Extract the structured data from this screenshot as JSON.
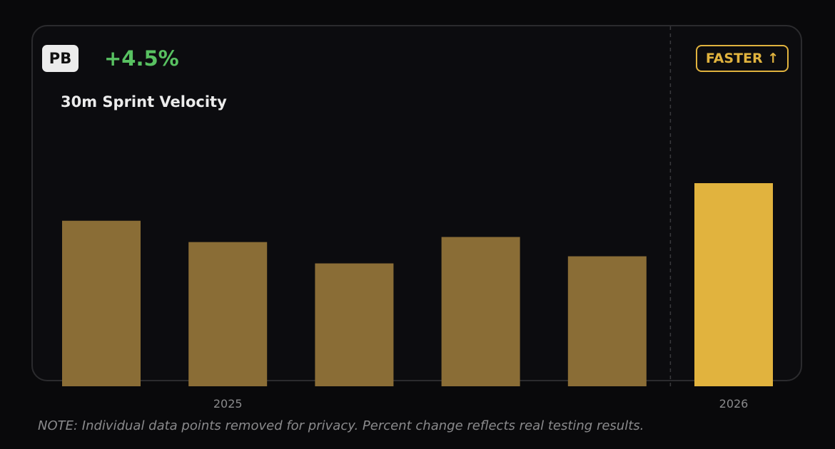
{
  "badge": {
    "label": "PB"
  },
  "change": {
    "text": "+4.5%",
    "color": "#58c161"
  },
  "tag": {
    "text": "FASTER ↑",
    "color": "#e1b33e"
  },
  "note": "NOTE: Individual data points removed for privacy. Percent change reflects real testing results.",
  "colors": {
    "past_bar": "#8a6d36",
    "current_bar": "#e1b33e",
    "background": "#0c0c0f",
    "divider": "#3a3a3d",
    "tick_label": "#8a8a8c"
  },
  "chart_data": {
    "type": "bar",
    "title": "30m Sprint Velocity",
    "xlabel": "",
    "ylabel": "",
    "categories": [
      "",
      "2025",
      "",
      "",
      "",
      "2026"
    ],
    "values": [
      0.815,
      0.71,
      0.605,
      0.735,
      0.64,
      1.0
    ],
    "highlight_index": 5,
    "divider_after_index": 4,
    "ylim": [
      0,
      1
    ],
    "grid": false
  }
}
